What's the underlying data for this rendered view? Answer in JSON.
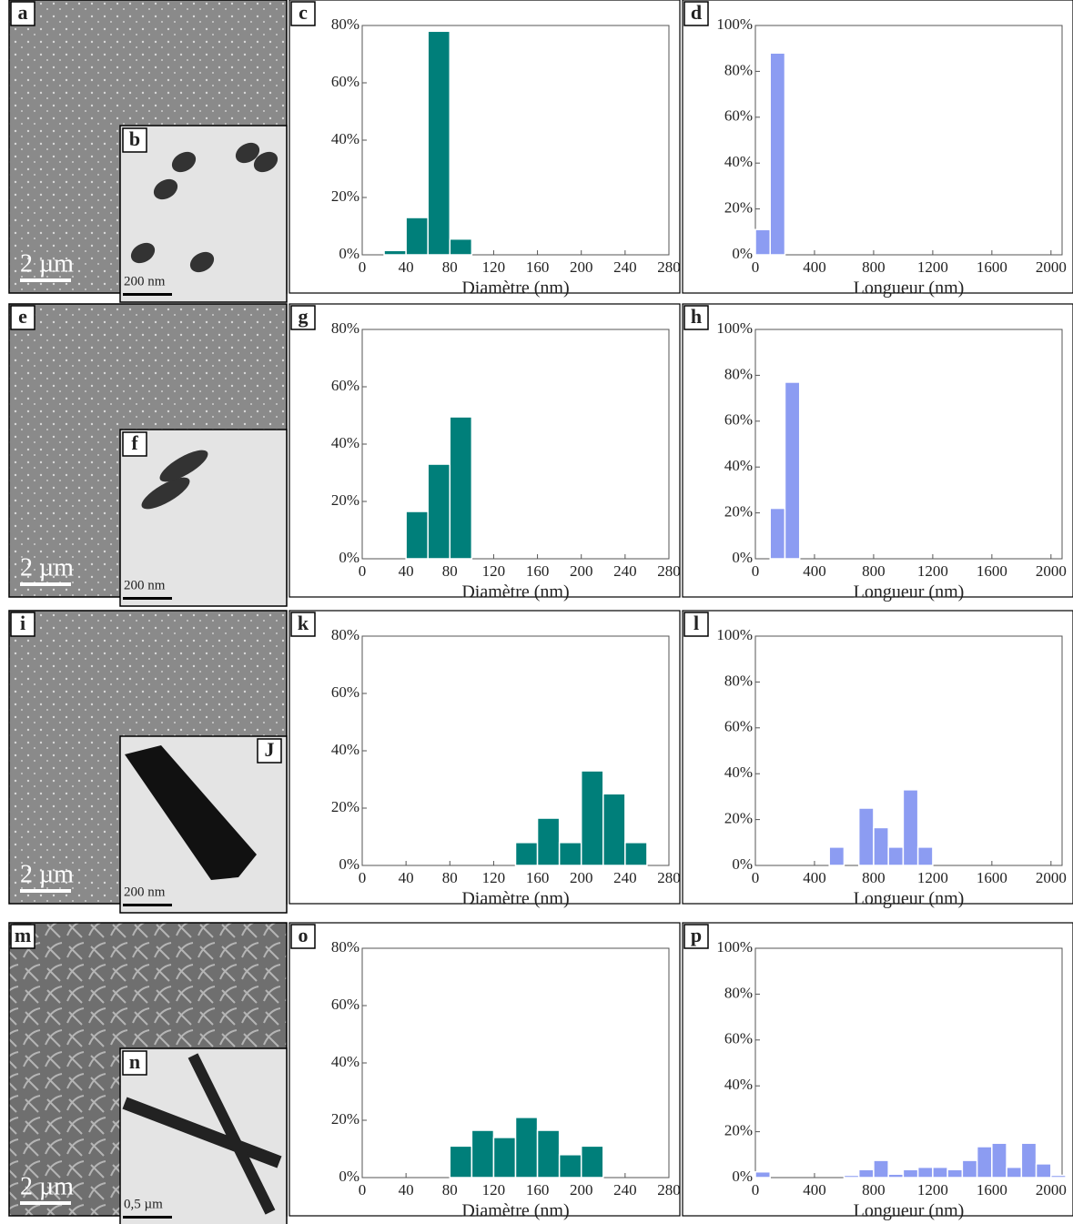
{
  "images": [
    {
      "label": "a",
      "scale_bar": "2 µm",
      "inset_label": "b",
      "inset_scale_bar": "200 nm"
    },
    {
      "label": "e",
      "scale_bar": "2 µm",
      "inset_label": "f",
      "inset_scale_bar": "200 nm"
    },
    {
      "label": "i",
      "scale_bar": "2 µm",
      "inset_label": "J",
      "inset_scale_bar": "200 nm"
    },
    {
      "label": "m",
      "scale_bar": "2 µm",
      "inset_label": "n",
      "inset_scale_bar": "0,5 µm"
    }
  ],
  "chart_data": [
    {
      "type": "histogram",
      "panel_label": "c",
      "xlabel": "Diamètre (nm)",
      "color": "#007f7a",
      "bins": [
        20,
        40,
        60,
        80,
        100
      ],
      "values": [
        1.5,
        13,
        78,
        5.5
      ],
      "xlim": [
        0,
        280
      ],
      "xticks": [
        0,
        40,
        80,
        120,
        160,
        200,
        240,
        280
      ],
      "ylim": [
        0,
        80
      ],
      "yticks": [
        {
          "value": 0,
          "label": "0%"
        },
        {
          "value": 20,
          "label": "20%"
        },
        {
          "value": 40,
          "label": "40%"
        },
        {
          "value": 60,
          "label": "60%"
        },
        {
          "value": 80,
          "label": "80%"
        }
      ]
    },
    {
      "type": "histogram",
      "panel_label": "d",
      "xlabel": "Longueur (nm)",
      "color": "#8c9cf2",
      "bins": [
        0,
        100,
        200
      ],
      "values": [
        11,
        88
      ],
      "xlim": [
        0,
        2075
      ],
      "xticks": [
        0,
        400,
        800,
        1200,
        1600,
        2000
      ],
      "ylim": [
        0,
        100
      ],
      "yticks": [
        {
          "value": 0,
          "label": "0%"
        },
        {
          "value": 20,
          "label": "20%"
        },
        {
          "value": 40,
          "label": "40%"
        },
        {
          "value": 60,
          "label": "60%"
        },
        {
          "value": 80,
          "label": "80%"
        },
        {
          "value": 100,
          "label": "100%"
        }
      ]
    },
    {
      "type": "histogram",
      "panel_label": "g",
      "xlabel": "Diamètre (nm)",
      "color": "#007f7a",
      "bins": [
        40,
        60,
        80,
        100
      ],
      "values": [
        16.5,
        33,
        49.5
      ],
      "xlim": [
        0,
        280
      ],
      "xticks": [
        0,
        40,
        80,
        120,
        160,
        200,
        240,
        280
      ],
      "ylim": [
        0,
        80
      ],
      "yticks": [
        {
          "value": 0,
          "label": "0%"
        },
        {
          "value": 20,
          "label": "20%"
        },
        {
          "value": 40,
          "label": "40%"
        },
        {
          "value": 60,
          "label": "60%"
        },
        {
          "value": 80,
          "label": "80%"
        }
      ]
    },
    {
      "type": "histogram",
      "panel_label": "h",
      "xlabel": "Longueur (nm)",
      "color": "#8c9cf2",
      "bins": [
        100,
        200,
        300
      ],
      "values": [
        22,
        77
      ],
      "xlim": [
        0,
        2075
      ],
      "xticks": [
        0,
        400,
        800,
        1200,
        1600,
        2000
      ],
      "ylim": [
        0,
        100
      ],
      "yticks": [
        {
          "value": 0,
          "label": "0%"
        },
        {
          "value": 20,
          "label": "20%"
        },
        {
          "value": 40,
          "label": "40%"
        },
        {
          "value": 60,
          "label": "60%"
        },
        {
          "value": 80,
          "label": "80%"
        },
        {
          "value": 100,
          "label": "100%"
        }
      ]
    },
    {
      "type": "histogram",
      "panel_label": "k",
      "xlabel": "Diamètre (nm)",
      "color": "#007f7a",
      "bins": [
        140,
        160,
        180,
        200,
        220,
        240,
        260
      ],
      "values": [
        8,
        16.5,
        8,
        33,
        25,
        8
      ],
      "xlim": [
        0,
        280
      ],
      "xticks": [
        0,
        40,
        80,
        120,
        160,
        200,
        240,
        280
      ],
      "ylim": [
        0,
        80
      ],
      "yticks": [
        {
          "value": 0,
          "label": "0%"
        },
        {
          "value": 20,
          "label": "20%"
        },
        {
          "value": 40,
          "label": "40%"
        },
        {
          "value": 60,
          "label": "60%"
        },
        {
          "value": 80,
          "label": "80%"
        }
      ]
    },
    {
      "type": "histogram",
      "panel_label": "l",
      "xlabel": "Longueur (nm)",
      "color": "#8c9cf2",
      "bins": [
        500,
        600,
        700,
        800,
        900,
        1000,
        1100,
        1200
      ],
      "values": [
        8,
        0,
        25,
        16.5,
        8,
        33,
        8
      ],
      "xlim": [
        0,
        2075
      ],
      "xticks": [
        0,
        400,
        800,
        1200,
        1600,
        2000
      ],
      "ylim": [
        0,
        100
      ],
      "yticks": [
        {
          "value": 0,
          "label": "0%"
        },
        {
          "value": 20,
          "label": "20%"
        },
        {
          "value": 40,
          "label": "40%"
        },
        {
          "value": 60,
          "label": "60%"
        },
        {
          "value": 80,
          "label": "80%"
        },
        {
          "value": 100,
          "label": "100%"
        }
      ]
    },
    {
      "type": "histogram",
      "panel_label": "o",
      "xlabel": "Diamètre (nm)",
      "color": "#007f7a",
      "bins": [
        80,
        100,
        120,
        140,
        160,
        180,
        200,
        220
      ],
      "values": [
        11,
        16.5,
        14,
        21,
        16.5,
        8,
        11
      ],
      "xlim": [
        0,
        280
      ],
      "xticks": [
        0,
        40,
        80,
        120,
        160,
        200,
        240,
        280
      ],
      "ylim": [
        0,
        80
      ],
      "yticks": [
        {
          "value": 0,
          "label": "0%"
        },
        {
          "value": 20,
          "label": "20%"
        },
        {
          "value": 40,
          "label": "40%"
        },
        {
          "value": 60,
          "label": "60%"
        },
        {
          "value": 80,
          "label": "80%"
        }
      ]
    },
    {
      "type": "histogram",
      "panel_label": "p",
      "xlabel": "Longueur (nm)",
      "color": "#8c9cf2",
      "bins": [
        0,
        100,
        200,
        300,
        400,
        500,
        600,
        700,
        800,
        900,
        1000,
        1100,
        1200,
        1300,
        1400,
        1500,
        1600,
        1700,
        1800,
        1900,
        2000,
        2100
      ],
      "values": [
        2.5,
        0,
        0,
        0,
        0,
        0,
        1,
        3.5,
        7.5,
        1.5,
        3.5,
        4.5,
        4.5,
        3.5,
        7.5,
        13.5,
        15,
        4.5,
        15,
        6,
        1
      ],
      "xlim": [
        0,
        2075
      ],
      "xticks": [
        0,
        400,
        800,
        1200,
        1600,
        2000
      ],
      "ylim": [
        0,
        100
      ],
      "yticks": [
        {
          "value": 0,
          "label": "0%"
        },
        {
          "value": 20,
          "label": "20%"
        },
        {
          "value": 40,
          "label": "40%"
        },
        {
          "value": 60,
          "label": "60%"
        },
        {
          "value": 80,
          "label": "80%"
        },
        {
          "value": 100,
          "label": "100%"
        }
      ]
    }
  ]
}
